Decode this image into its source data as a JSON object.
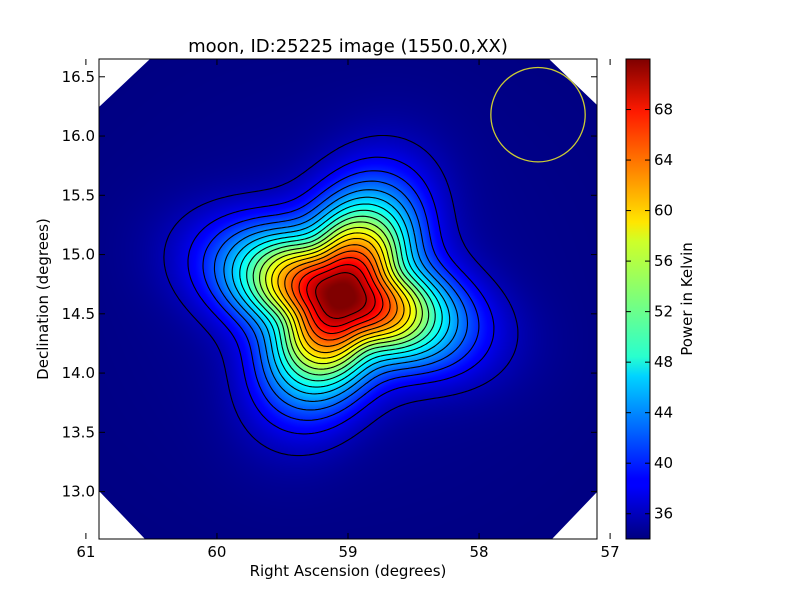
{
  "chart_data": {
    "type": "heatmap",
    "title": "moon, ID:25225 image (1550.0,XX)",
    "xlabel": "Right Ascension (degrees)",
    "ylabel": "Declination (degrees)",
    "xlim": [
      60.9,
      57.1
    ],
    "ylim": [
      12.6,
      16.65
    ],
    "x_ticks": [
      61,
      60,
      59,
      58,
      57
    ],
    "y_ticks": [
      13.0,
      13.5,
      14.0,
      14.5,
      15.0,
      15.5,
      16.0,
      16.5
    ],
    "x_tick_labels": [
      "61",
      "60",
      "59",
      "58",
      "57"
    ],
    "y_tick_labels": [
      "13.0",
      "13.5",
      "14.0",
      "14.5",
      "15.0",
      "15.5",
      "16.0",
      "16.5"
    ],
    "colorbar": {
      "label": "Power in Kelvin",
      "range": [
        34.0,
        72.0
      ],
      "ticks": [
        36,
        40,
        44,
        48,
        52,
        56,
        60,
        64,
        68
      ],
      "tick_labels": [
        "36",
        "40",
        "44",
        "48",
        "52",
        "56",
        "60",
        "64",
        "68"
      ],
      "colormap": "jet"
    },
    "source_peak": {
      "ra": 59.05,
      "dec": 14.65,
      "value": 72.0
    },
    "background_level": 34.0,
    "contour_levels": [
      36,
      38,
      40,
      42,
      44,
      46,
      48,
      50,
      52,
      54,
      56,
      58,
      60,
      62,
      64,
      66,
      68,
      70
    ],
    "beam_circle": {
      "ra": 57.55,
      "dec": 16.18,
      "radius_deg": 0.36,
      "color": "#cccc33"
    },
    "grid": false,
    "contour_color": "#000000"
  }
}
